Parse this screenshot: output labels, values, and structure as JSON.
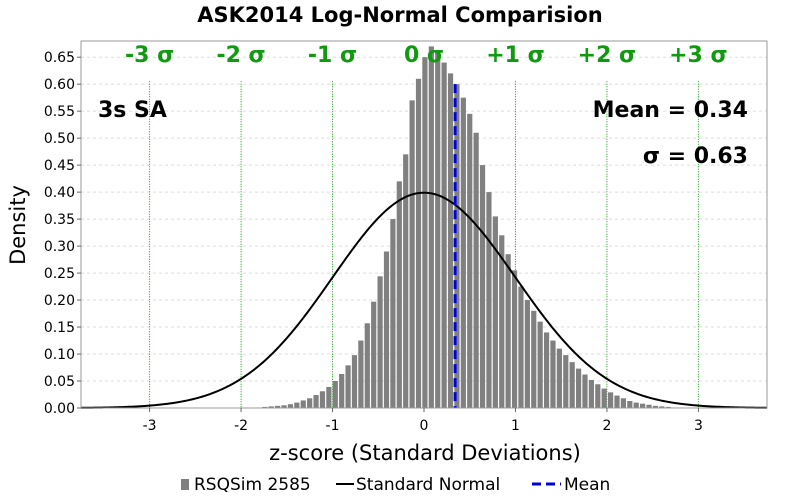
{
  "chart_data": {
    "type": "bar",
    "title": "ASK2014 Log-Normal Comparision",
    "xlabel": "z-score (Standard Deviations)",
    "ylabel": "Density",
    "xlim": [
      -3.75,
      3.75
    ],
    "ylim": [
      0,
      0.68
    ],
    "x_ticks": [
      "-3",
      "-2",
      "-1",
      "0",
      "1",
      "2",
      "3"
    ],
    "x_tick_values": [
      -3,
      -2,
      -1,
      0,
      1,
      2,
      3
    ],
    "y_ticks": [
      "0.00",
      "0.05",
      "0.10",
      "0.15",
      "0.20",
      "0.25",
      "0.30",
      "0.35",
      "0.40",
      "0.45",
      "0.50",
      "0.55",
      "0.60",
      "0.65"
    ],
    "y_tick_values": [
      0,
      0.05,
      0.1,
      0.15,
      0.2,
      0.25,
      0.3,
      0.35,
      0.4,
      0.45,
      0.5,
      0.55,
      0.6,
      0.65
    ],
    "grid": true,
    "sigma_lines": [
      -3,
      -2,
      -1,
      1,
      2,
      3
    ],
    "sigma_labels": [
      {
        "text": "-3 σ",
        "x": -3
      },
      {
        "text": "-2 σ",
        "x": -2
      },
      {
        "text": "-1 σ",
        "x": -1
      },
      {
        "text": "0 σ",
        "x": 0
      },
      {
        "text": "+1 σ",
        "x": 1
      },
      {
        "text": "+2 σ",
        "x": 2
      },
      {
        "text": "+3 σ",
        "x": 3
      }
    ],
    "annotations": {
      "component": "3s SA",
      "mean_text": "Mean = 0.34",
      "sigma_text": "σ = 0.63"
    },
    "histogram": {
      "name": "RSQSim 2585",
      "color": "#808080",
      "bin_width": 0.07,
      "x": [
        -1.81,
        -1.74,
        -1.67,
        -1.6,
        -1.53,
        -1.46,
        -1.39,
        -1.32,
        -1.25,
        -1.18,
        -1.11,
        -1.04,
        -0.97,
        -0.9,
        -0.83,
        -0.76,
        -0.69,
        -0.62,
        -0.55,
        -0.48,
        -0.41,
        -0.34,
        -0.27,
        -0.2,
        -0.13,
        -0.06,
        0.01,
        0.08,
        0.15,
        0.22,
        0.29,
        0.36,
        0.43,
        0.5,
        0.57,
        0.64,
        0.71,
        0.78,
        0.85,
        0.92,
        0.99,
        1.06,
        1.13,
        1.2,
        1.27,
        1.34,
        1.41,
        1.48,
        1.55,
        1.62,
        1.69,
        1.76,
        1.83,
        1.9,
        1.97,
        2.04,
        2.11,
        2.18,
        2.25,
        2.32,
        2.39,
        2.46,
        2.53,
        2.6,
        2.67,
        2.74,
        2.81,
        2.88,
        2.95
      ],
      "values": [
        0.001,
        0.002,
        0.003,
        0.004,
        0.005,
        0.007,
        0.01,
        0.014,
        0.018,
        0.024,
        0.031,
        0.039,
        0.05,
        0.063,
        0.079,
        0.098,
        0.125,
        0.157,
        0.197,
        0.244,
        0.29,
        0.35,
        0.42,
        0.47,
        0.57,
        0.61,
        0.65,
        0.67,
        0.66,
        0.64,
        0.62,
        0.6,
        0.575,
        0.545,
        0.51,
        0.45,
        0.4,
        0.355,
        0.32,
        0.285,
        0.255,
        0.225,
        0.2,
        0.18,
        0.16,
        0.14,
        0.125,
        0.11,
        0.098,
        0.085,
        0.073,
        0.062,
        0.052,
        0.044,
        0.036,
        0.029,
        0.023,
        0.018,
        0.013,
        0.01,
        0.008,
        0.006,
        0.004,
        0.003,
        0.002,
        0.001,
        0.001,
        0.0008,
        0.0005
      ]
    },
    "series": [
      {
        "name": "RSQSim 2585",
        "type": "bar",
        "color": "#808080"
      },
      {
        "name": "Standard Normal",
        "type": "line",
        "color": "#000000",
        "mu": 0,
        "sigma": 1
      },
      {
        "name": "Mean",
        "type": "vline",
        "color": "#0000dd",
        "x": 0.34,
        "y_top": 0.6
      }
    ],
    "legend_position": "bottom"
  }
}
